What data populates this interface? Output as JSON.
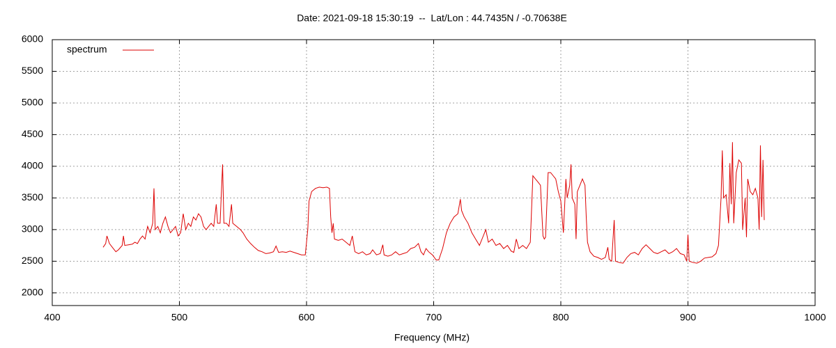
{
  "chart_data": {
    "type": "line",
    "title": "Date: 2021-09-18 15:30:19  --  Lat/Lon : 44.7435N / -0.70638E",
    "x_label": "Frequency (MHz)",
    "legend": "top-left",
    "grid": true,
    "xlim": [
      400,
      1000
    ],
    "xticks": [
      400,
      500,
      600,
      700,
      800,
      900,
      1000
    ],
    "ylim": [
      1800,
      6000
    ],
    "yticks": [
      2000,
      2500,
      3000,
      3500,
      4000,
      4500,
      5000,
      5500,
      6000
    ],
    "x": [
      440,
      442,
      443,
      445,
      448,
      450,
      452,
      455,
      456,
      457,
      460,
      463,
      465,
      467,
      469,
      471,
      473,
      475,
      477,
      479,
      480,
      481,
      483,
      485,
      487,
      489,
      491,
      493,
      495,
      497,
      499,
      501,
      503,
      505,
      507,
      509,
      511,
      513,
      515,
      517,
      519,
      521,
      523,
      525,
      527,
      529,
      530,
      532,
      534,
      535,
      537,
      539,
      541,
      542,
      545,
      548,
      550,
      553,
      556,
      559,
      562,
      565,
      568,
      571,
      574,
      576,
      578,
      581,
      584,
      587,
      590,
      593,
      596,
      599,
      600,
      601,
      602,
      604,
      607,
      610,
      613,
      616,
      618,
      619,
      620,
      621,
      622,
      625,
      628,
      631,
      634,
      636,
      638,
      641,
      644,
      647,
      650,
      652,
      655,
      658,
      660,
      661,
      664,
      667,
      670,
      673,
      676,
      679,
      682,
      685,
      688,
      690,
      692,
      694,
      696,
      699,
      702,
      704,
      707,
      710,
      713,
      716,
      719,
      721,
      722,
      724,
      727,
      730,
      733,
      736,
      739,
      741,
      743,
      746,
      749,
      752,
      755,
      758,
      761,
      763,
      765,
      767,
      770,
      773,
      776,
      778,
      780,
      782,
      784,
      786,
      787,
      788,
      790,
      792,
      794,
      796,
      798,
      800,
      802,
      804,
      805,
      807,
      808,
      809,
      811,
      812,
      813,
      815,
      817,
      819,
      820,
      821,
      823,
      826,
      829,
      832,
      835,
      837,
      838,
      840,
      842,
      843,
      846,
      849,
      852,
      855,
      858,
      861,
      864,
      867,
      870,
      873,
      876,
      879,
      882,
      885,
      888,
      891,
      894,
      897,
      899,
      900,
      901,
      904,
      907,
      910,
      913,
      916,
      919,
      922,
      924,
      926,
      927,
      928,
      930,
      932,
      933,
      934,
      935,
      936,
      938,
      940,
      942,
      943,
      945,
      946,
      947,
      949,
      951,
      953,
      955,
      956,
      957,
      958,
      959,
      960
    ],
    "series": [
      {
        "name": "spectrum",
        "color": "#dd0000",
        "values": [
          2720,
          2780,
          2900,
          2780,
          2700,
          2650,
          2680,
          2750,
          2900,
          2750,
          2760,
          2770,
          2800,
          2780,
          2850,
          2900,
          2850,
          3050,
          2950,
          3100,
          3650,
          3000,
          3050,
          2950,
          3100,
          3200,
          3050,
          2950,
          3000,
          3050,
          2900,
          2950,
          3250,
          3000,
          3100,
          3050,
          3200,
          3150,
          3250,
          3200,
          3050,
          3000,
          3050,
          3100,
          3050,
          3400,
          3100,
          3100,
          4030,
          3100,
          3100,
          3050,
          3400,
          3100,
          3050,
          3000,
          2950,
          2850,
          2780,
          2720,
          2670,
          2650,
          2620,
          2630,
          2650,
          2740,
          2640,
          2650,
          2640,
          2660,
          2640,
          2620,
          2600,
          2600,
          2800,
          3000,
          3450,
          3600,
          3650,
          3670,
          3660,
          3670,
          3650,
          3200,
          2950,
          3100,
          2850,
          2830,
          2850,
          2800,
          2750,
          2900,
          2650,
          2620,
          2650,
          2600,
          2620,
          2680,
          2600,
          2620,
          2760,
          2600,
          2580,
          2600,
          2650,
          2600,
          2620,
          2640,
          2700,
          2720,
          2780,
          2650,
          2600,
          2700,
          2650,
          2600,
          2520,
          2520,
          2700,
          2950,
          3100,
          3200,
          3250,
          3480,
          3300,
          3200,
          3100,
          2950,
          2850,
          2750,
          2900,
          3000,
          2800,
          2850,
          2750,
          2780,
          2700,
          2750,
          2660,
          2640,
          2850,
          2700,
          2750,
          2700,
          2800,
          3850,
          3800,
          3750,
          3700,
          2900,
          2850,
          2880,
          3900,
          3900,
          3850,
          3800,
          3600,
          3450,
          2950,
          3800,
          3500,
          3700,
          4030,
          3500,
          3400,
          2850,
          3600,
          3700,
          3800,
          3700,
          3200,
          2800,
          2650,
          2580,
          2560,
          2530,
          2560,
          2720,
          2530,
          2500,
          3150,
          2500,
          2480,
          2470,
          2560,
          2620,
          2640,
          2600,
          2700,
          2760,
          2700,
          2640,
          2620,
          2650,
          2680,
          2620,
          2650,
          2700,
          2620,
          2600,
          2500,
          2920,
          2500,
          2480,
          2470,
          2500,
          2550,
          2560,
          2570,
          2620,
          2750,
          3500,
          4250,
          3500,
          3550,
          3100,
          4050,
          3400,
          4380,
          3100,
          3900,
          4100,
          4050,
          3000,
          3500,
          2880,
          3800,
          3600,
          3550,
          3650,
          3500,
          3000,
          4330,
          3200,
          4100,
          3150
        ]
      }
    ]
  }
}
